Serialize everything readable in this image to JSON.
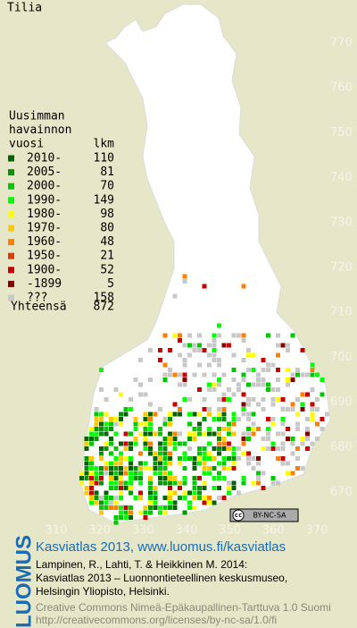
{
  "title": "Tilia",
  "legend": {
    "header": [
      "Uusimman",
      "havainnon",
      "vuosi"
    ],
    "count_header": "lkm",
    "entries": [
      {
        "label": "2010-",
        "count": 110,
        "color": "#006400"
      },
      {
        "label": "2005-",
        "count": 81,
        "color": "#009600"
      },
      {
        "label": "2000-",
        "count": 70,
        "color": "#00c800"
      },
      {
        "label": "1990-",
        "count": 149,
        "color": "#00ff00"
      },
      {
        "label": "1980-",
        "count": 98,
        "color": "#ffff00"
      },
      {
        "label": "1970-",
        "count": 80,
        "color": "#ffc800"
      },
      {
        "label": "1960-",
        "count": 48,
        "color": "#ff8000"
      },
      {
        "label": "1950-",
        "count": 21,
        "color": "#e03c00"
      },
      {
        "label": "1900-",
        "count": 52,
        "color": "#c80000"
      },
      {
        "label": "-1899",
        "count": 5,
        "color": "#800000"
      },
      {
        "label": "???",
        "count": 158,
        "color": "#c8c8c8"
      }
    ],
    "total_label": "Yhteensä",
    "total": 872
  },
  "axes": {
    "y_ticks": [
      770,
      760,
      750,
      740,
      730,
      720,
      710,
      700,
      690,
      680,
      670
    ],
    "x_ticks": [
      310,
      320,
      330,
      340,
      350,
      360,
      370
    ]
  },
  "badge": {
    "cc": "cc",
    "license": "BY-NC-SA"
  },
  "footer": {
    "logo": "LUOMUS",
    "link": "Kasviatlas 2013, www.luomus.fi/kasviatlas",
    "citation": [
      "Lampinen, R., Lahti, T. & Heikkinen M. 2014:",
      "Kasviatlas 2013 – Luonnontieteellinen keskusmuseo,",
      "Helsingin Yliopisto, Helsinki."
    ],
    "license": [
      "Creative Commons Nimeä-Epäkaupallinen-Tarttuva 1.0 Suomi",
      "http://creativecommons.org/licenses/by-nc-sa/1.0/fi"
    ]
  }
}
